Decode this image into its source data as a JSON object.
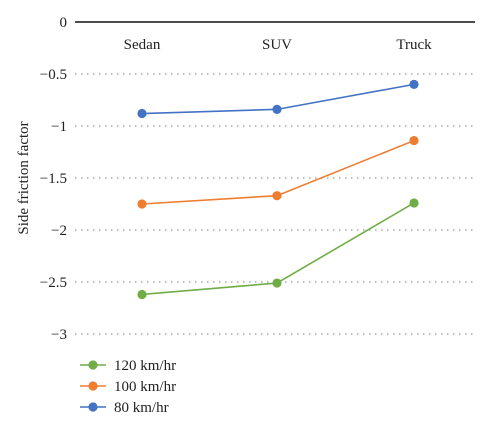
{
  "chart_data": {
    "type": "line",
    "categories": [
      "Sedan",
      "SUV",
      "Truck"
    ],
    "ylabel": "Side friction factor",
    "xlabel": "",
    "title": "",
    "ylim": [
      -3,
      0
    ],
    "yticks": [
      "0",
      "−0.5",
      "−1",
      "−1.5",
      "−2",
      "−2.5",
      "−3"
    ],
    "ytick_values": [
      0,
      -0.5,
      -1,
      -1.5,
      -2,
      -2.5,
      -3
    ],
    "grid": "horizontal-dotted",
    "legend_position": "bottom-left",
    "series": [
      {
        "name": "120 km/hr",
        "color": "#70ad47",
        "values": [
          -2.62,
          -2.51,
          -1.74
        ]
      },
      {
        "name": "100 km/hr",
        "color": "#ed7d31",
        "values": [
          -1.75,
          -1.67,
          -1.14
        ]
      },
      {
        "name": "80 km/hr",
        "color": "#4472c4",
        "values": [
          -0.88,
          -0.84,
          -0.6
        ]
      }
    ]
  }
}
